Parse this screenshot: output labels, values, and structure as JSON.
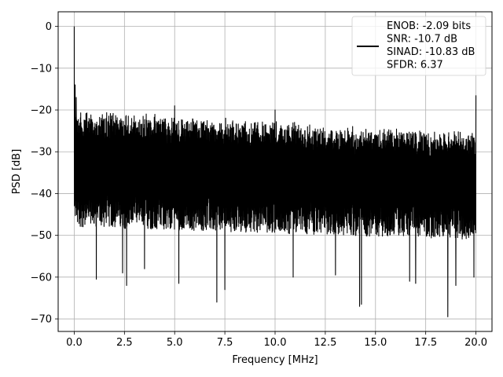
{
  "chart_data": {
    "type": "line",
    "title": "",
    "xlabel": "Frequency [MHz]",
    "ylabel": "PSD [dB]",
    "xlim": [
      -0.8,
      20.8
    ],
    "ylim": [
      -73,
      3.5
    ],
    "xticks": [
      0.0,
      2.5,
      5.0,
      7.5,
      10.0,
      12.5,
      15.0,
      17.5,
      20.0
    ],
    "xtick_labels": [
      "0.0",
      "2.5",
      "5.0",
      "7.5",
      "10.0",
      "12.5",
      "15.0",
      "17.5",
      "20.0"
    ],
    "yticks": [
      0,
      -10,
      -20,
      -30,
      -40,
      -50,
      -60,
      -70
    ],
    "ytick_labels": [
      "0",
      "−10",
      "−20",
      "−30",
      "−40",
      "−50",
      "−60",
      "−70"
    ],
    "grid": true,
    "legend_position": "top-right",
    "legend_entries": [
      "ENOB: -2.09 bits",
      "SNR: -10.7 dB",
      "SINAD: -10.83 dB",
      "SFDR: 6.37"
    ],
    "series_color": "#000000",
    "series": [
      {
        "x_range": [
          0.0,
          20.0
        ],
        "peaks": [
          {
            "x": 0.0,
            "y": 0.0
          },
          {
            "x": 0.05,
            "y": -14.0
          },
          {
            "x": 0.1,
            "y": -17.0
          },
          {
            "x": 5.0,
            "y": -19.0
          },
          {
            "x": 10.0,
            "y": -20.0
          },
          {
            "x": 20.0,
            "y": -16.5
          }
        ],
        "floor_top_start": -22,
        "floor_top_end": -27,
        "floor_bottom_start": -47,
        "floor_bottom_end": -50,
        "dips": [
          {
            "x": 1.1,
            "y": -60.5
          },
          {
            "x": 2.4,
            "y": -59.0
          },
          {
            "x": 2.6,
            "y": -62.0
          },
          {
            "x": 3.5,
            "y": -58.0
          },
          {
            "x": 5.2,
            "y": -61.5
          },
          {
            "x": 7.1,
            "y": -66.0
          },
          {
            "x": 7.5,
            "y": -63.0
          },
          {
            "x": 10.9,
            "y": -60.0
          },
          {
            "x": 13.0,
            "y": -59.5
          },
          {
            "x": 14.2,
            "y": -67.0
          },
          {
            "x": 14.3,
            "y": -66.5
          },
          {
            "x": 16.7,
            "y": -61.0
          },
          {
            "x": 17.0,
            "y": -61.5
          },
          {
            "x": 18.6,
            "y": -69.5
          },
          {
            "x": 19.0,
            "y": -62.0
          },
          {
            "x": 19.9,
            "y": -60.0
          }
        ]
      }
    ]
  }
}
